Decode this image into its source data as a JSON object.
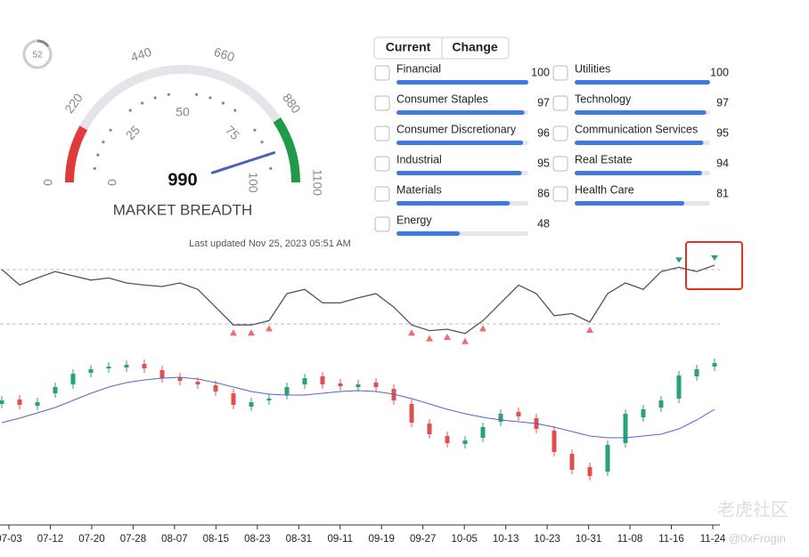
{
  "badge": 52,
  "gauge": {
    "outer_ticks": [
      0,
      220,
      440,
      660,
      880,
      1100
    ],
    "inner_ticks": [
      0,
      25,
      50,
      75,
      100
    ],
    "value": 990,
    "title": "MARKET BREADTH",
    "bands": [
      {
        "from": 0,
        "to": 176,
        "color": "#e03a3a"
      },
      {
        "from": 895,
        "to": 1100,
        "color": "#1f9a48"
      }
    ],
    "track_color": "#e4e5ea",
    "needle_color": "#4a63b5"
  },
  "tabs": [
    "Current",
    "Change"
  ],
  "sectors": [
    [
      {
        "name": "Financial",
        "value": 100
      },
      {
        "name": "Consumer Staples",
        "value": 97
      },
      {
        "name": "Consumer Discretionary",
        "value": 96
      },
      {
        "name": "Industrial",
        "value": 95
      },
      {
        "name": "Materials",
        "value": 86
      },
      {
        "name": "Energy",
        "value": 48
      }
    ],
    [
      {
        "name": "Utilities",
        "value": 100
      },
      {
        "name": "Technology",
        "value": 97
      },
      {
        "name": "Communication Services",
        "value": 95
      },
      {
        "name": "Real Estate",
        "value": 94
      },
      {
        "name": "Health Care",
        "value": 81
      }
    ]
  ],
  "updated": "Last updated Nov 25, 2023 05:51 AM",
  "breadth": {
    "values": [
      94,
      72,
      82,
      91,
      85,
      79,
      82,
      75,
      72,
      70,
      75,
      66,
      41,
      16,
      16,
      22,
      60,
      66,
      47,
      47,
      54,
      60,
      41,
      16,
      8,
      10,
      4,
      22,
      47,
      72,
      60,
      29,
      32,
      20,
      60,
      75,
      66,
      91,
      97,
      91,
      100
    ],
    "color": "#4a5568"
  },
  "candles": {
    "open": [
      146,
      151,
      144,
      158,
      168,
      181,
      186,
      187,
      191,
      184,
      176,
      171,
      167,
      158,
      143,
      150,
      156,
      168,
      177,
      169,
      165,
      170,
      163,
      146,
      124,
      110,
      101,
      108,
      126,
      137,
      130,
      116,
      90,
      75,
      70,
      102,
      131,
      142,
      152,
      177,
      188
    ],
    "high": [
      155,
      156,
      153,
      170,
      185,
      190,
      193,
      195,
      196,
      189,
      181,
      176,
      172,
      163,
      153,
      157,
      170,
      180,
      182,
      174,
      173,
      175,
      168,
      151,
      129,
      115,
      110,
      125,
      140,
      142,
      135,
      121,
      95,
      80,
      105,
      140,
      145,
      155,
      183,
      190,
      197
    ],
    "low": [
      141,
      140,
      139,
      153,
      163,
      176,
      181,
      182,
      181,
      170,
      167,
      163,
      155,
      140,
      138,
      145,
      151,
      163,
      163,
      161,
      160,
      160,
      145,
      120,
      107,
      97,
      96,
      103,
      121,
      127,
      113,
      87,
      67,
      60,
      65,
      97,
      126,
      137,
      147,
      172,
      183
    ],
    "close": [
      150,
      145,
      148,
      165,
      180,
      185,
      188,
      190,
      186,
      175,
      172,
      168,
      160,
      145,
      148,
      152,
      165,
      175,
      168,
      166,
      168,
      165,
      150,
      125,
      112,
      102,
      105,
      120,
      135,
      132,
      118,
      92,
      72,
      65,
      100,
      135,
      140,
      150,
      178,
      185,
      192
    ],
    "ma": [
      125,
      130,
      136,
      142,
      150,
      158,
      165,
      170,
      173,
      175,
      176,
      174,
      170,
      165,
      160,
      157,
      156,
      156,
      158,
      160,
      161,
      160,
      157,
      152,
      146,
      140,
      135,
      131,
      128,
      126,
      124,
      120,
      115,
      110,
      108,
      108,
      110,
      112,
      118,
      128,
      140
    ],
    "up_color": "#26a17b",
    "down_color": "#e04f4f",
    "ma_color": "#5a5fd0"
  },
  "dates": [
    "07-03",
    "07-12",
    "07-20",
    "07-28",
    "08-07",
    "08-15",
    "08-23",
    "08-31",
    "09-11",
    "09-19",
    "09-27",
    "10-05",
    "10-13",
    "10-23",
    "10-31",
    "11-08",
    "11-16",
    "11-24"
  ],
  "watermark": [
    "老虎社区",
    "@0xFrogin"
  ]
}
